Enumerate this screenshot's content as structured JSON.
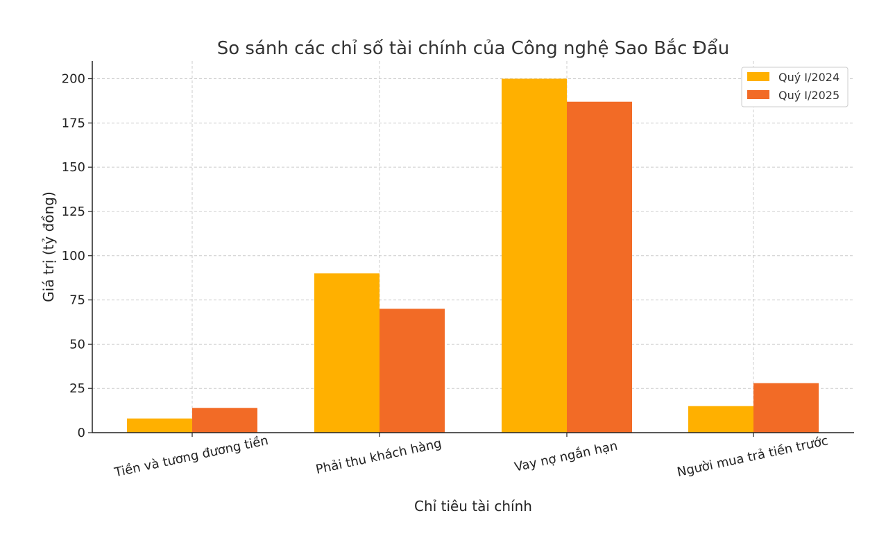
{
  "chart_data": {
    "type": "bar",
    "title": "So sánh các chỉ số tài chính của Công nghệ Sao Bắc Đẩu",
    "xlabel": "Chỉ tiêu tài chính",
    "ylabel": "Giá trị (tỷ đồng)",
    "categories": [
      "Tiền và tương đương tiền",
      "Phải thu khách hàng",
      "Vay nợ ngắn hạn",
      "Người mua trả tiền trước"
    ],
    "series": [
      {
        "name": "Quý I/2024",
        "color": "#FFB000",
        "values": [
          8,
          90,
          200,
          15
        ]
      },
      {
        "name": "Quý I/2025",
        "color": "#F26B26",
        "values": [
          14,
          70,
          187,
          28
        ]
      }
    ],
    "ylim": [
      0,
      210
    ],
    "yticks": [
      0,
      25,
      50,
      75,
      100,
      125,
      150,
      175,
      200
    ],
    "grid": true,
    "legend_position": "top-right"
  }
}
